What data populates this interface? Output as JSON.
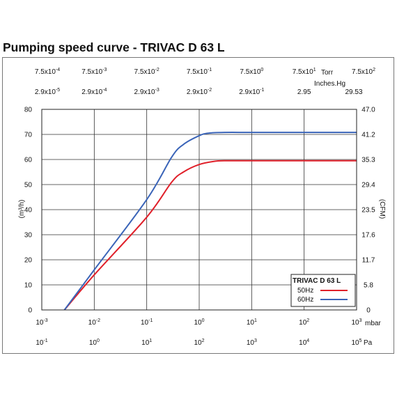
{
  "title": "Pumping speed curve - TRIVAC D 63 L",
  "chart_data": {
    "type": "line",
    "title": "Pumping speed curve - TRIVAC D 63 L",
    "x_axis": {
      "unit": "mbar",
      "scale": "log",
      "range": [
        0.001,
        1000
      ],
      "ticks": [
        {
          "b": "10",
          "e": "-3"
        },
        {
          "b": "10",
          "e": "-2"
        },
        {
          "b": "10",
          "e": "-1"
        },
        {
          "b": "10",
          "e": "0"
        },
        {
          "b": "10",
          "e": "1"
        },
        {
          "b": "10",
          "e": "2"
        },
        {
          "b": "10",
          "e": "3"
        }
      ]
    },
    "x_axis_pa": {
      "unit": "Pa",
      "ticks": [
        {
          "b": "10",
          "e": "-1"
        },
        {
          "b": "10",
          "e": "0"
        },
        {
          "b": "10",
          "e": "1"
        },
        {
          "b": "10",
          "e": "2"
        },
        {
          "b": "10",
          "e": "3"
        },
        {
          "b": "10",
          "e": "4"
        },
        {
          "b": "10",
          "e": "5"
        }
      ]
    },
    "x_axis_torr": {
      "unit": "Torr",
      "ticks": [
        {
          "b": "7.5x10",
          "e": "-4"
        },
        {
          "b": "7.5x10",
          "e": "-3"
        },
        {
          "b": "7.5x10",
          "e": "-2"
        },
        {
          "b": "7.5x10",
          "e": "-1"
        },
        {
          "b": "7.5x10",
          "e": "0"
        },
        {
          "b": "7.5x10",
          "e": "1"
        },
        {
          "b": "7.5x10",
          "e": "2"
        }
      ]
    },
    "x_axis_inhg": {
      "unit": "Inches.Hg",
      "ticks": [
        {
          "b": "2.9x10",
          "e": "-5"
        },
        {
          "b": "2.9x10",
          "e": "-4"
        },
        {
          "b": "2.9x10",
          "e": "-3"
        },
        {
          "b": "2.9x10",
          "e": "-2"
        },
        {
          "b": "2.9x10",
          "e": "-1"
        },
        {
          "b": "2.95",
          "e": ""
        },
        {
          "b": "29.53",
          "e": ""
        }
      ]
    },
    "y_axis": {
      "label": "(m³/h)",
      "range": [
        0,
        80
      ],
      "ticks": [
        "0",
        "10",
        "20",
        "30",
        "40",
        "50",
        "60",
        "70",
        "80"
      ]
    },
    "y_axis_right": {
      "label": "(CFM)",
      "ticks": [
        "0",
        "5.8",
        "11.7",
        "17.6",
        "23.5",
        "29.4",
        "35.3",
        "41.2",
        "47.0"
      ]
    },
    "grid": true,
    "legend": {
      "title": "TRIVAC D 63 L",
      "placement": "bottom-right"
    },
    "series": [
      {
        "name": "50Hz",
        "color": "#e0202a",
        "points": [
          [
            0.0027,
            0
          ],
          [
            0.01,
            14
          ],
          [
            0.1,
            37
          ],
          [
            0.3,
            51
          ],
          [
            0.5,
            55
          ],
          [
            1.0,
            58
          ],
          [
            2.0,
            59.3
          ],
          [
            3.0,
            59.5
          ],
          [
            10,
            59.5
          ],
          [
            100,
            59.5
          ],
          [
            1000,
            59.5
          ]
        ]
      },
      {
        "name": "60Hz",
        "color": "#3a64b8",
        "points": [
          [
            0.0027,
            0
          ],
          [
            0.01,
            16
          ],
          [
            0.1,
            44
          ],
          [
            0.3,
            61
          ],
          [
            0.5,
            66
          ],
          [
            1.0,
            69.5
          ],
          [
            1.5,
            70.5
          ],
          [
            3.0,
            70.8
          ],
          [
            10,
            70.8
          ],
          [
            100,
            70.8
          ],
          [
            1000,
            70.8
          ]
        ]
      }
    ]
  }
}
